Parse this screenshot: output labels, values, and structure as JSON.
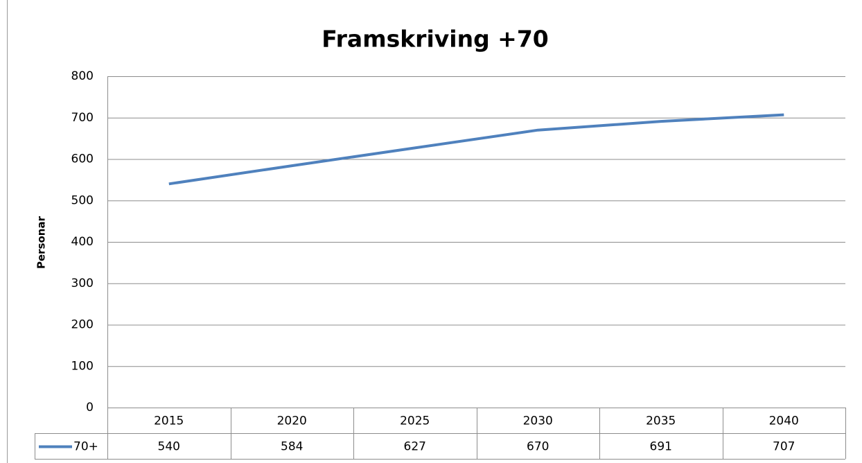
{
  "chart_data": {
    "type": "line",
    "title": "Framskriving +70",
    "y_label": "Personar",
    "categories": [
      "2015",
      "2020",
      "2025",
      "2030",
      "2035",
      "2040"
    ],
    "series": [
      {
        "name": "70+",
        "color": "#4f81bd",
        "values": [
          540,
          584,
          627,
          670,
          691,
          707
        ]
      }
    ],
    "ylim": [
      0,
      800
    ],
    "yticks": [
      0,
      100,
      200,
      300,
      400,
      500,
      600,
      700,
      800
    ],
    "grid": true,
    "data_table": true
  }
}
